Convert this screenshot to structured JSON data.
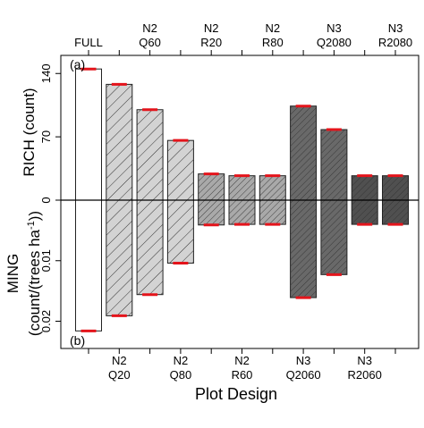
{
  "chart_data": {
    "type": "bar",
    "title": "",
    "xlabel": "Plot Design",
    "categories": [
      "FULL",
      "N2\nQ20",
      "N2\nQ60",
      "N2\nQ80",
      "N2\nR20",
      "N2\nR60",
      "N2\nR80",
      "N3\nQ2060",
      "N3\nQ2080",
      "N3\nR2060",
      "N3\nR2080"
    ],
    "top_tick_labels": [
      {
        "index": 0,
        "lines": [
          "FULL"
        ]
      },
      {
        "index": 2,
        "lines": [
          "N2",
          "Q60"
        ]
      },
      {
        "index": 4,
        "lines": [
          "N2",
          "R20"
        ]
      },
      {
        "index": 6,
        "lines": [
          "N2",
          "R80"
        ]
      },
      {
        "index": 8,
        "lines": [
          "N3",
          "Q2080"
        ]
      },
      {
        "index": 10,
        "lines": [
          "N3",
          "R2080"
        ]
      }
    ],
    "bottom_tick_labels": [
      {
        "index": 1,
        "lines": [
          "N2",
          "Q20"
        ]
      },
      {
        "index": 3,
        "lines": [
          "N2",
          "Q80"
        ]
      },
      {
        "index": 5,
        "lines": [
          "N2",
          "R60"
        ]
      },
      {
        "index": 7,
        "lines": [
          "N3",
          "Q2060"
        ]
      },
      {
        "index": 9,
        "lines": [
          "N3",
          "R2060"
        ]
      }
    ],
    "panels": [
      {
        "tag": "(a)",
        "ylabel": "RICH (count)",
        "ylim": [
          0,
          160
        ],
        "yticks": [
          0,
          70,
          140
        ],
        "ytick_labels": [
          "0",
          "70",
          "140"
        ],
        "values": [
          145,
          128,
          100,
          66,
          29,
          27,
          27,
          104,
          78,
          27,
          27
        ]
      },
      {
        "tag": "(b)",
        "ylabel_lines": [
          "MING",
          "(count/(trees ha-1))"
        ],
        "ylim": [
          0,
          0.0245
        ],
        "yticks": [
          0.01,
          0.02
        ],
        "ytick_labels": [
          "0.01",
          "0.02"
        ],
        "values": [
          0.0216,
          0.0191,
          0.0156,
          0.0104,
          0.0041,
          0.004,
          0.004,
          0.0161,
          0.0123,
          0.004,
          0.004
        ]
      }
    ],
    "fill_colors": [
      "#ffffff",
      "#d3d3d3",
      "#d3d3d3",
      "#d3d3d3",
      "#a9a9a9",
      "#a9a9a9",
      "#a9a9a9",
      "#696969",
      "#696969",
      "#505050",
      "#505050"
    ],
    "hatched": [
      false,
      true,
      true,
      true,
      true,
      true,
      true,
      true,
      true,
      true,
      true
    ],
    "cap_color": "#e4141b",
    "grid": false
  }
}
